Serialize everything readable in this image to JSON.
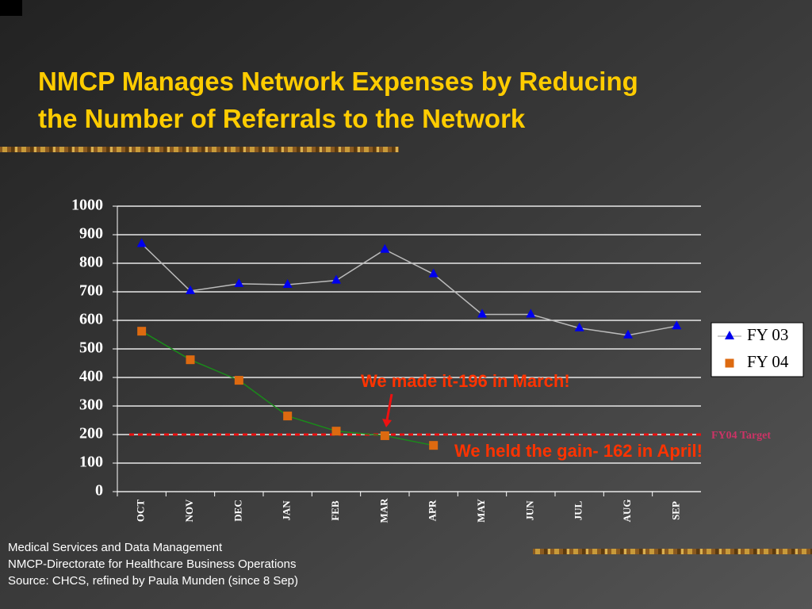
{
  "title_lines": [
    "NMCP Manages Network Expenses by Reducing",
    "the Number of Referrals to the Network"
  ],
  "chart_data": {
    "type": "line",
    "categories": [
      "OCT",
      "NOV",
      "DEC",
      "JAN",
      "FEB",
      "MAR",
      "APR",
      "MAY",
      "JUN",
      "JUL",
      "AUG",
      "SEP"
    ],
    "series": [
      {
        "name": "FY 03",
        "color": "#0000ee",
        "line_color": "#bbbbbb",
        "marker": "triangle",
        "values": [
          868,
          703,
          728,
          725,
          740,
          848,
          762,
          621,
          621,
          573,
          548,
          580
        ]
      },
      {
        "name": "FY 04",
        "color": "#dd6a10",
        "line_color": "#1a8a1a",
        "marker": "square",
        "values": [
          562,
          462,
          390,
          265,
          212,
          196,
          162,
          null,
          null,
          null,
          null,
          null
        ]
      }
    ],
    "ylim": [
      0,
      1000
    ],
    "yticks": [
      0,
      100,
      200,
      300,
      400,
      500,
      600,
      700,
      800,
      900,
      1000
    ],
    "grid": true,
    "legend": "right",
    "target": {
      "value": 200,
      "label": "FY04 Target",
      "color": "#ee1111"
    },
    "annotations": [
      "We made it-196 in March!",
      "We held the gain- 162 in April!"
    ]
  },
  "footer": [
    "Medical Services and Data Management",
    "NMCP-Directorate for Healthcare Business Operations",
    "Source:  CHCS, refined by Paula Munden (since 8 Sep)"
  ]
}
